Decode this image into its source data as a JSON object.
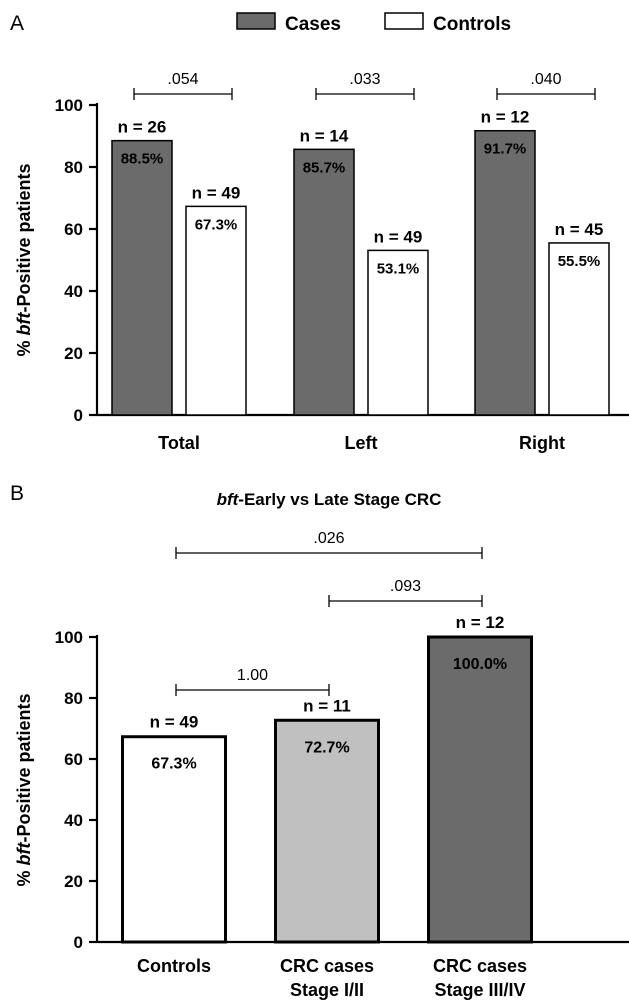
{
  "panel_a": {
    "letter": "A",
    "legend": [
      {
        "label": "Cases",
        "fill": "#6b6b6b"
      },
      {
        "label": "Controls",
        "fill": "#ffffff"
      }
    ],
    "ylabel_prefix": "% ",
    "ylabel_italic": "bft",
    "ylabel_suffix": "-Positive patients"
  },
  "panel_b": {
    "letter": "B",
    "title_italic": "bft",
    "title_suffix": "-Early vs Late Stage CRC",
    "ylabel_prefix": "% ",
    "ylabel_italic": "bft",
    "ylabel_suffix": "-Positive patients"
  },
  "chart_data": [
    {
      "type": "bar",
      "title": "",
      "ylim": [
        0,
        100
      ],
      "yticks": [
        0,
        20,
        40,
        60,
        80,
        100
      ],
      "categories": [
        "Total",
        "Left",
        "Right"
      ],
      "series": [
        {
          "name": "Cases",
          "color": "#6b6b6b",
          "values": [
            88.5,
            85.7,
            91.7
          ],
          "value_labels": [
            "88.5%",
            "85.7%",
            "91.7%"
          ],
          "n_labels": [
            "n = 26",
            "n = 14",
            "n = 12"
          ]
        },
        {
          "name": "Controls",
          "color": "#ffffff",
          "values": [
            67.3,
            53.1,
            55.5
          ],
          "value_labels": [
            "67.3%",
            "53.1%",
            "55.5%"
          ],
          "n_labels": [
            "n = 49",
            "n = 49",
            "n = 45"
          ]
        }
      ],
      "comparisons": [
        {
          "category": "Total",
          "p": ".054"
        },
        {
          "category": "Left",
          "p": ".033"
        },
        {
          "category": "Right",
          "p": ".040"
        }
      ],
      "legend_position": "top"
    },
    {
      "type": "bar",
      "title": "bft-Early vs Late Stage CRC",
      "ylim": [
        0,
        100
      ],
      "yticks": [
        0,
        20,
        40,
        60,
        80,
        100
      ],
      "categories": [
        {
          "lines": [
            "Controls"
          ]
        },
        {
          "lines": [
            "CRC cases",
            "Stage I/II"
          ]
        },
        {
          "lines": [
            "CRC cases",
            "Stage III/IV"
          ]
        }
      ],
      "values": [
        67.3,
        72.7,
        100.0
      ],
      "value_labels": [
        "67.3%",
        "72.7%",
        "100.0%"
      ],
      "n_labels": [
        "n = 49",
        "n = 11",
        "n = 12"
      ],
      "colors": [
        "#ffffff",
        "#c0c0c0",
        "#6b6b6b"
      ],
      "comparisons": [
        {
          "from": 0,
          "to": 1,
          "p": "1.00"
        },
        {
          "from": 1,
          "to": 2,
          "p": ".093"
        },
        {
          "from": 0,
          "to": 2,
          "p": ".026"
        }
      ]
    }
  ]
}
